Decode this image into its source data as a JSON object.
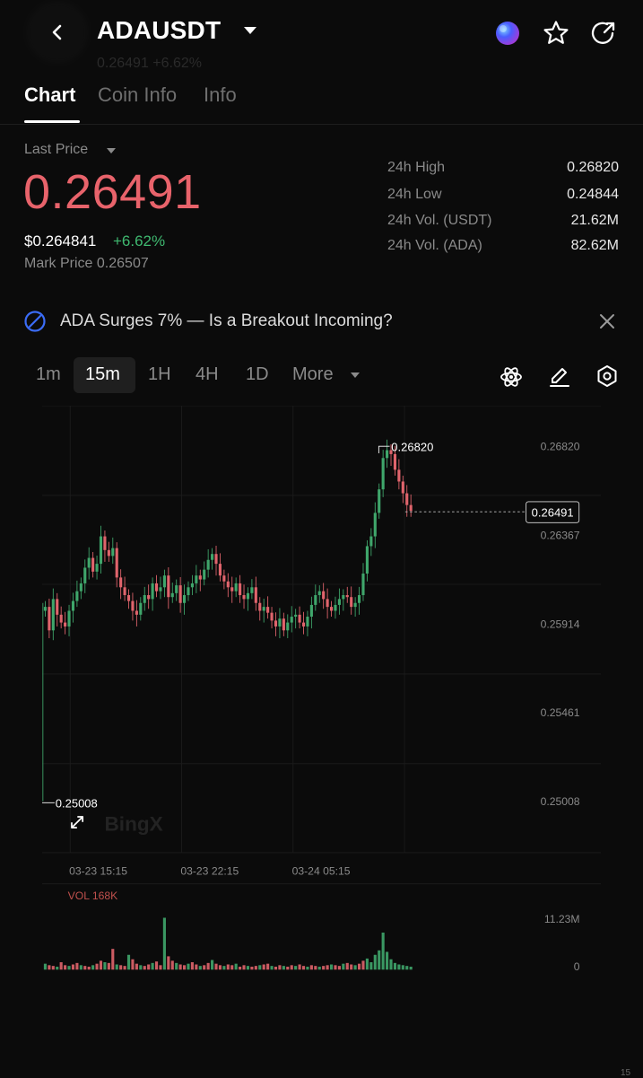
{
  "header": {
    "pair": "ADAUSDT",
    "ghost_text": "0.26491 +6.62%",
    "icons": [
      "back-icon",
      "caret-down-icon",
      "ai-orb-icon",
      "star-icon",
      "share-icon"
    ]
  },
  "tabs": [
    {
      "label": "Chart",
      "active": true
    },
    {
      "label": "Coin Info",
      "active": false
    },
    {
      "label": "Info",
      "active": false
    }
  ],
  "price": {
    "last_price_label": "Last Price",
    "last_price": "0.26491",
    "usd_price": "$0.264841",
    "change": "+6.62%",
    "mark_price": "Mark Price 0.26507"
  },
  "stats": [
    {
      "label": "24h High",
      "value": "0.26820"
    },
    {
      "label": "24h Low",
      "value": "0.24844"
    },
    {
      "label": "24h Vol. (USDT)",
      "value": "21.62M"
    },
    {
      "label": "24h Vol. (ADA)",
      "value": "82.62M"
    }
  ],
  "news": {
    "headline": "ADA Surges 7% — Is a Breakout Incoming?"
  },
  "intervals": [
    {
      "label": "1m",
      "active": false
    },
    {
      "label": "15m",
      "active": true
    },
    {
      "label": "1H",
      "active": false
    },
    {
      "label": "4H",
      "active": false
    },
    {
      "label": "1D",
      "active": false
    },
    {
      "label": "More",
      "active": false
    }
  ],
  "chart_data": {
    "type": "candlestick",
    "y_ticks": [
      "0.26820",
      "0.26367",
      "0.25914",
      "0.25461",
      "0.25008"
    ],
    "x_ticks": [
      "03-23 15:15",
      "03-23 22:15",
      "03-24 05:15"
    ],
    "high_marker": "0.26820",
    "low_marker": "0.25008",
    "current_price": "0.26491",
    "watermark": "BingX",
    "volume_label": "VOL 168K",
    "volume_ticks": [
      "11.23M",
      "0"
    ],
    "colors": {
      "up": "#3fa66b",
      "down": "#e0646c"
    }
  },
  "footer": {
    "scroll_text": "15"
  }
}
